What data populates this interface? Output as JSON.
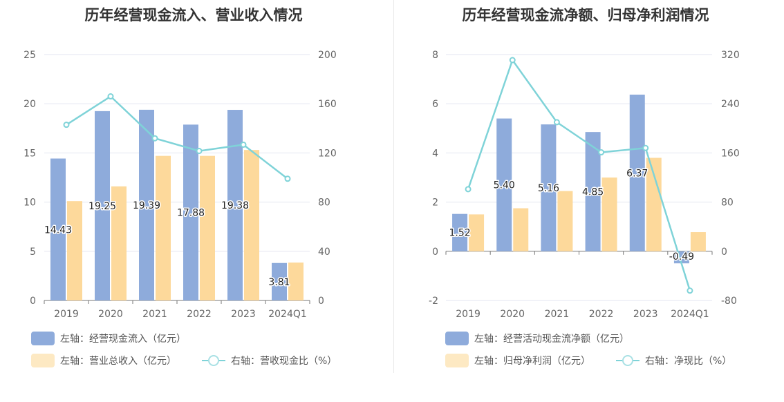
{
  "colors": {
    "inflow_bar": "#8eabdb",
    "revenue_bar": "#fdd99b",
    "ratio_line": "#7fd3d8",
    "grid": "#e3e6f0",
    "axis": "#666666"
  },
  "chart_data": [
    {
      "type": "bar",
      "title": "历年经营现金流入、营业收入情况",
      "categories": [
        "2019",
        "2020",
        "2021",
        "2022",
        "2023",
        "2024Q1"
      ],
      "left_axis": {
        "ylim": [
          0,
          25
        ],
        "ticks": [
          "0",
          "5",
          "10",
          "15",
          "20",
          "25"
        ]
      },
      "right_axis": {
        "ylim": [
          0,
          200
        ],
        "ticks": [
          "0",
          "40",
          "80",
          "120",
          "160",
          "200"
        ]
      },
      "series": [
        {
          "name": "左轴：经营现金流入（亿元）",
          "axis": "left",
          "kind": "bar",
          "values": [
            14.43,
            19.25,
            19.39,
            17.88,
            19.38,
            3.81
          ],
          "labels": [
            "14.43",
            "19.25",
            "19.39",
            "17.88",
            "19.38",
            "3.81"
          ]
        },
        {
          "name": "左轴：营业总收入（亿元）",
          "axis": "left",
          "kind": "bar",
          "values": [
            10.1,
            11.6,
            14.7,
            14.7,
            15.3,
            3.85
          ]
        },
        {
          "name": "右轴：营收现金比（%）",
          "axis": "right",
          "kind": "line",
          "values": [
            142.9,
            166,
            131.9,
            121.6,
            126.7,
            99
          ]
        }
      ],
      "legend_position": "bottom"
    },
    {
      "type": "bar",
      "title": "历年经营现金流净额、归母净利润情况",
      "categories": [
        "2019",
        "2020",
        "2021",
        "2022",
        "2023",
        "2024Q1"
      ],
      "left_axis": {
        "ylim": [
          -2,
          8
        ],
        "ticks": [
          "-2",
          "0",
          "2",
          "4",
          "6",
          "8"
        ]
      },
      "right_axis": {
        "ylim": [
          -80,
          320
        ],
        "ticks": [
          "-80",
          "0",
          "80",
          "160",
          "240",
          "320"
        ]
      },
      "series": [
        {
          "name": "左轴：经营活动现金流净额（亿元）",
          "axis": "left",
          "kind": "bar",
          "values": [
            1.52,
            5.4,
            5.16,
            4.85,
            6.37,
            -0.49
          ],
          "labels": [
            "1.52",
            "5.40",
            "5.16",
            "4.85",
            "6.37",
            "-0.49"
          ]
        },
        {
          "name": "左轴：归母净利润（亿元）",
          "axis": "left",
          "kind": "bar",
          "values": [
            1.5,
            1.75,
            2.45,
            3.0,
            3.8,
            0.78
          ]
        },
        {
          "name": "右轴：净现比（%）",
          "axis": "right",
          "kind": "line",
          "values": [
            101,
            311,
            210,
            161,
            168,
            -64
          ]
        }
      ],
      "legend_position": "bottom"
    }
  ]
}
